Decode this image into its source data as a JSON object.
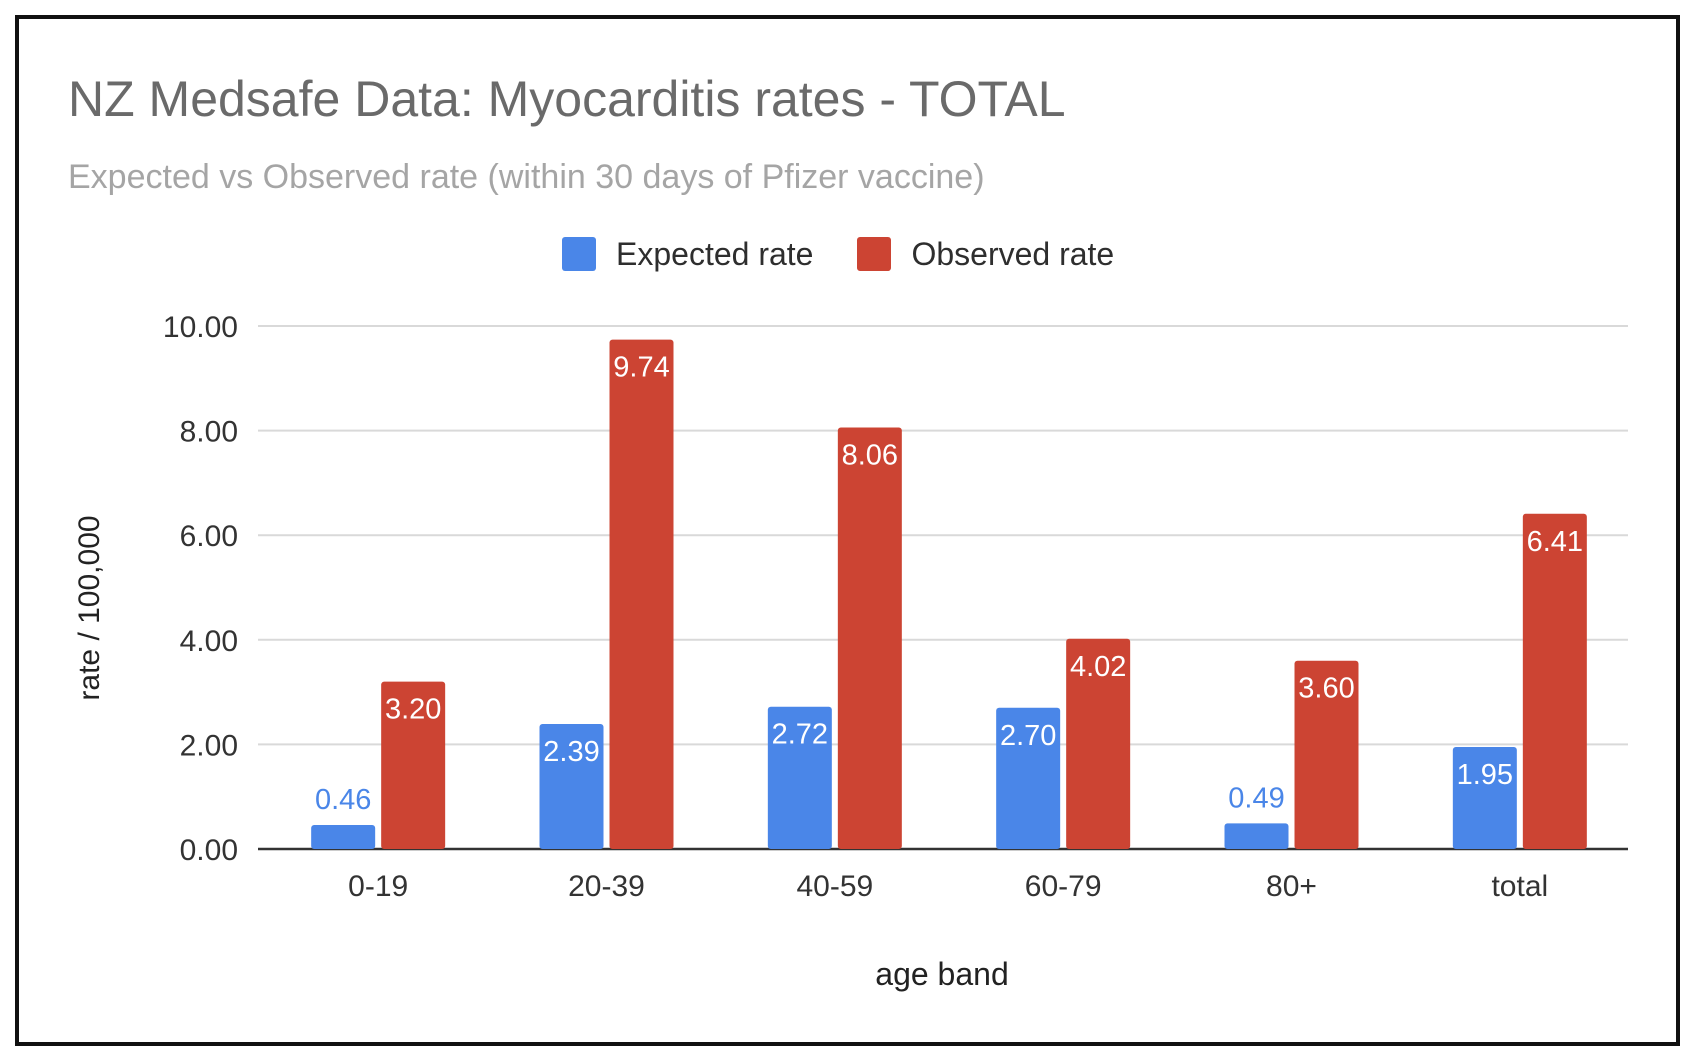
{
  "colors": {
    "expected": "#4a86e8",
    "observed": "#cc4433",
    "expected_label_outside": "#4a86e8",
    "label_inside": "#ffffff",
    "grid": "#d9d9d9",
    "axis": "#333333"
  },
  "chart_data": {
    "type": "bar",
    "title": "NZ Medsafe Data: Myocarditis rates - TOTAL",
    "subtitle": "Expected vs Observed rate (within 30 days of Pfizer vaccine)",
    "xlabel": "age band",
    "ylabel": "rate / 100,000",
    "ylim": [
      0,
      10
    ],
    "yticks": [
      "0.00",
      "2.00",
      "4.00",
      "6.00",
      "8.00",
      "10.00"
    ],
    "categories": [
      "0-19",
      "20-39",
      "40-59",
      "60-79",
      "80+",
      "total"
    ],
    "legend_position": "top-center",
    "grid": true,
    "series": [
      {
        "name": "Expected rate",
        "values": [
          0.46,
          2.39,
          2.72,
          2.7,
          0.49,
          1.95
        ],
        "labels": [
          "0.46",
          "2.39",
          "2.72",
          "2.70",
          "0.49",
          "1.95"
        ]
      },
      {
        "name": "Observed rate",
        "values": [
          3.2,
          9.74,
          8.06,
          4.02,
          3.6,
          6.41
        ],
        "labels": [
          "3.20",
          "9.74",
          "8.06",
          "4.02",
          "3.60",
          "6.41"
        ]
      }
    ]
  }
}
